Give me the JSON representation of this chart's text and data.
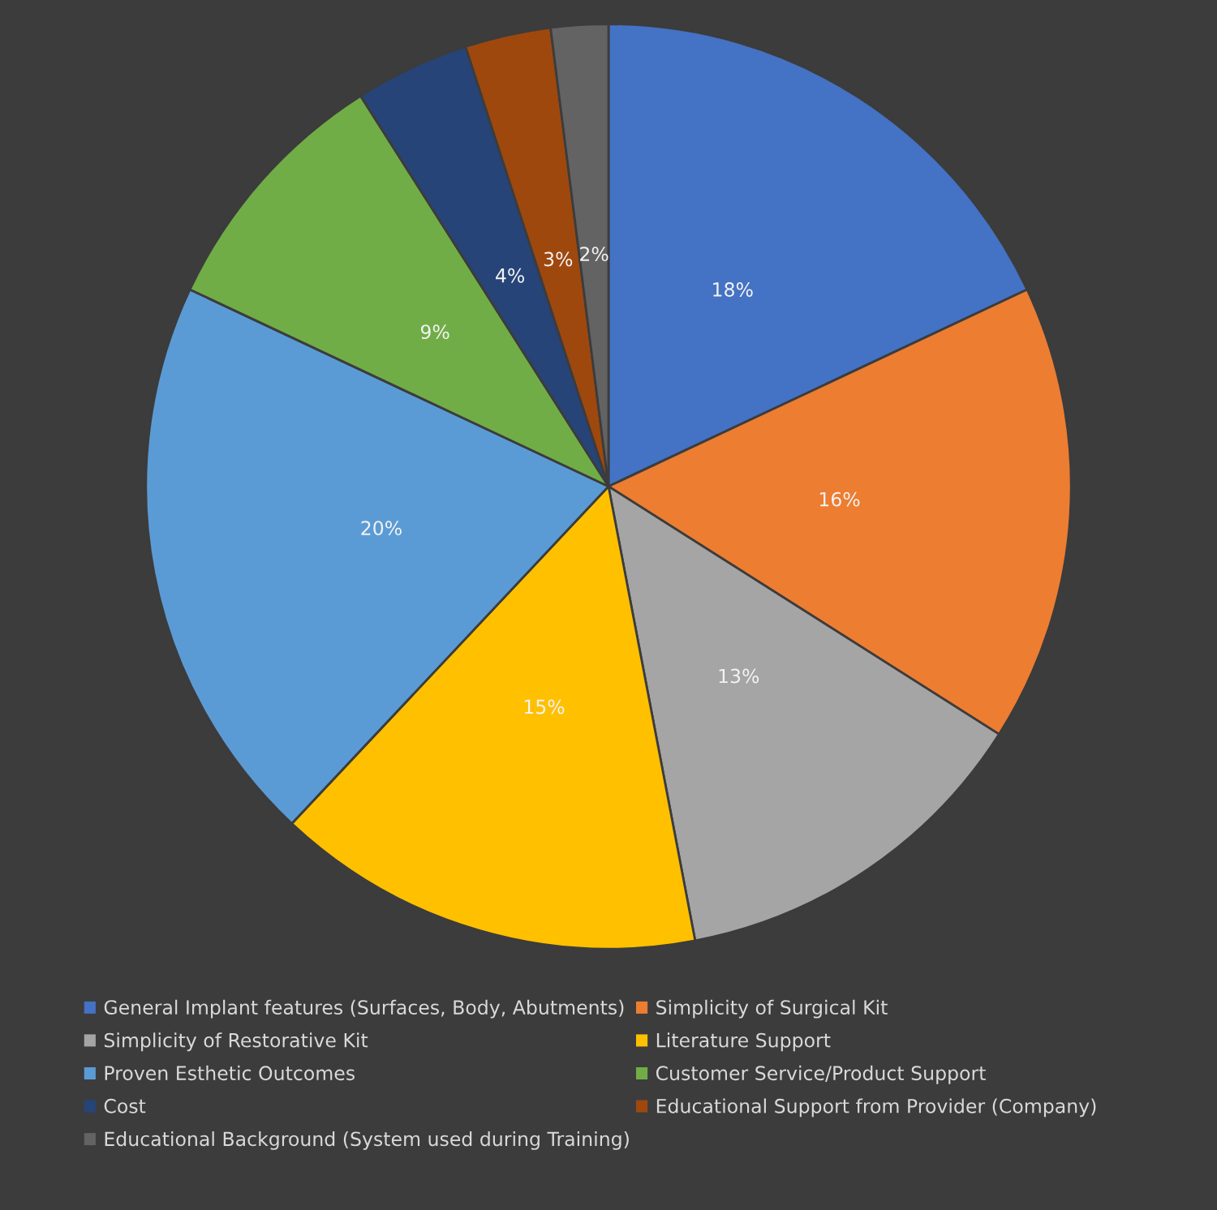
{
  "chart_data": {
    "type": "pie",
    "categories": [
      "General Implant features (Surfaces, Body, Abutments)",
      "Simplicity of Surgical Kit",
      "Simplicity of Restorative Kit",
      "Literature Support",
      "Proven Esthetic Outcomes",
      "Customer Service/Product Support",
      "Cost",
      "Educational Support from Provider (Company)",
      "Educational Background (System used during Training)"
    ],
    "values": [
      18,
      16,
      13,
      15,
      20,
      9,
      4,
      3,
      2
    ],
    "value_labels": [
      "18%",
      "16%",
      "13%",
      "15%",
      "20%",
      "9%",
      "4%",
      "3%",
      "2%"
    ],
    "colors": [
      "#4472c4",
      "#ed7d31",
      "#a5a5a5",
      "#ffc000",
      "#5b9bd5",
      "#70ad47",
      "#264478",
      "#9e480e",
      "#636363"
    ],
    "legend": "bottom"
  }
}
